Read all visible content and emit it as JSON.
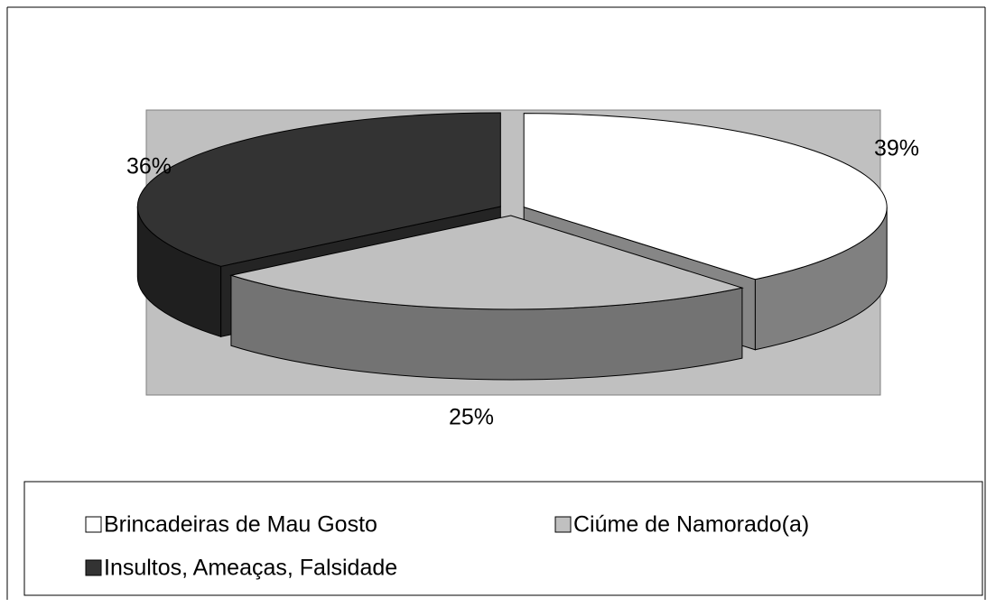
{
  "chart_data": {
    "type": "pie",
    "categories": [
      "Brincadeiras de Mau Gosto",
      "Ciúme de Namorado(a)",
      "Insultos, Ameaças, Falsidade"
    ],
    "values": [
      39,
      25,
      36
    ],
    "value_labels": [
      "39%",
      "25%",
      "36%"
    ],
    "colors": [
      "#ffffff",
      "#c0c0c0",
      "#333333"
    ],
    "legend": "bottom"
  }
}
